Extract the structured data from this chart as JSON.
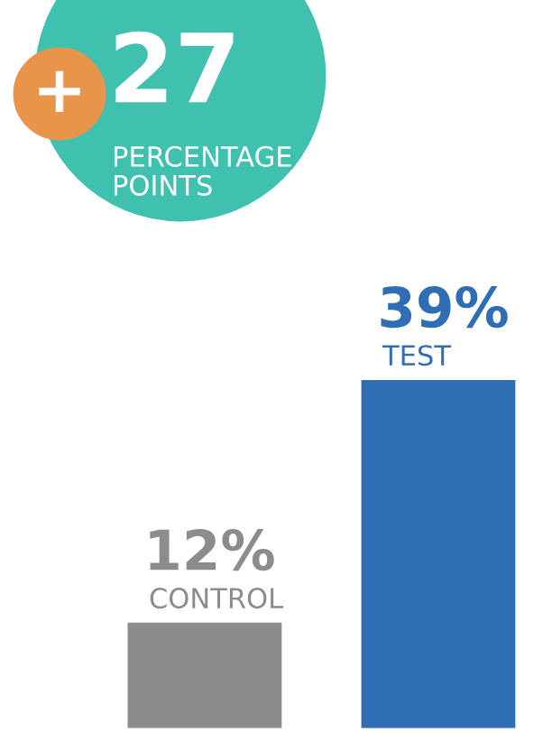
{
  "chart_data": {
    "type": "bar",
    "categories": [
      "CONTROL",
      "TEST"
    ],
    "values": [
      12,
      39
    ],
    "colors": [
      "#8c8c8c",
      "#2f6db5"
    ],
    "value_labels": [
      "12%",
      "39%"
    ],
    "annotations": [
      "+",
      "27",
      "PERCENTAGE\nPOINTS"
    ],
    "legend": false
  }
}
